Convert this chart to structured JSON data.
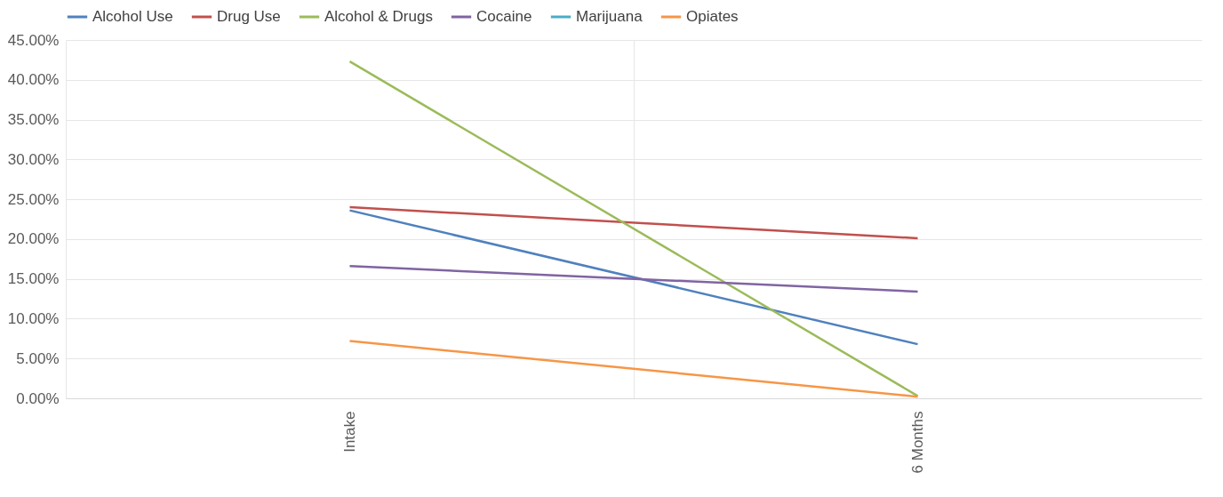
{
  "chart_data": {
    "type": "line",
    "categories": [
      "Intake",
      "6 Months"
    ],
    "series": [
      {
        "name": "Alcohol Use",
        "color": "#4f81bd",
        "values": [
          23.6,
          6.8
        ]
      },
      {
        "name": "Drug Use",
        "color": "#c0504d",
        "values": [
          24.0,
          20.1
        ]
      },
      {
        "name": "Alcohol & Drugs",
        "color": "#9bbb59",
        "values": [
          42.3,
          0.3
        ]
      },
      {
        "name": "Cocaine",
        "color": "#8064a2",
        "values": [
          16.6,
          13.4
        ]
      },
      {
        "name": "Marijuana",
        "color": "#4bacc6",
        "values": [
          null,
          null
        ]
      },
      {
        "name": "Opiates",
        "color": "#f79646",
        "values": [
          7.2,
          0.2
        ]
      }
    ],
    "ylim": [
      0,
      45
    ],
    "yticks": [
      {
        "value": 0,
        "label": "0.00%"
      },
      {
        "value": 5,
        "label": "5.00%"
      },
      {
        "value": 10,
        "label": "10.00%"
      },
      {
        "value": 15,
        "label": "15.00%"
      },
      {
        "value": 20,
        "label": "20.00%"
      },
      {
        "value": 25,
        "label": "25.00%"
      },
      {
        "value": 30,
        "label": "30.00%"
      },
      {
        "value": 35,
        "label": "35.00%"
      },
      {
        "value": 40,
        "label": "40.00%"
      },
      {
        "value": 45,
        "label": "45.00%"
      }
    ],
    "grid": true,
    "legend": "top",
    "line_style": "solid"
  }
}
